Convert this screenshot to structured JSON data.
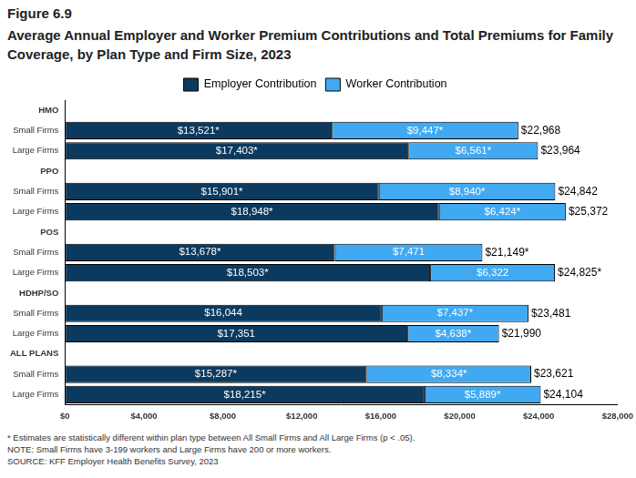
{
  "chart_data": {
    "type": "bar",
    "orientation": "horizontal",
    "stacked": true,
    "subtitle": "Figure 6.9",
    "title": "Average Annual Employer and Worker Premium Contributions and Total Premiums for Family Coverage, by Plan Type and Firm Size, 2023",
    "annotations": [
      "* Estimates are statistically different within plan type between All Small Firms and All Large Firms (p < .05).",
      "NOTE: Small Firms have 3-199 workers and Large Firms have 200 or more workers.",
      "SOURCE: KFF Employer Health Benefits Survey, 2023"
    ],
    "categories": [
      "HMO",
      "Small Firms",
      "Large Firms",
      "PPO",
      "Small Firms",
      "Large Firms",
      "POS",
      "Small Firms",
      "Large Firms",
      "HDHP/SO",
      "Small Firms",
      "Large Firms",
      "ALL PLANS",
      "Small Firms",
      "Large Firms"
    ],
    "series": [
      {
        "name": "Employer Contribution",
        "color": "#0c3a5e",
        "values": [
          null,
          13521,
          17403,
          null,
          15901,
          18948,
          null,
          13678,
          18503,
          null,
          16044,
          17351,
          null,
          15287,
          18215
        ],
        "value_labels": [
          null,
          "$13,521*",
          "$17,403*",
          null,
          "$15,901*",
          "$18,948*",
          null,
          "$13,678*",
          "$18,503*",
          null,
          "$16,044",
          "$17,351",
          null,
          "$15,287*",
          "$18,215*"
        ]
      },
      {
        "name": "Worker Contribution",
        "color": "#41a9f2",
        "values": [
          null,
          9447,
          6561,
          null,
          8940,
          6424,
          null,
          7471,
          6322,
          null,
          7437,
          4638,
          null,
          8334,
          5889
        ],
        "value_labels": [
          null,
          "$9,447*",
          "$6,561*",
          null,
          "$8,940*",
          "$6,424*",
          null,
          "$7,471",
          "$6,322",
          null,
          "$7,437*",
          "$4,638*",
          null,
          "$8,334*",
          "$5,889*"
        ]
      }
    ],
    "totals": [
      null,
      22968,
      23964,
      null,
      24842,
      25372,
      null,
      21149,
      24825,
      null,
      23481,
      21990,
      null,
      23621,
      24104
    ],
    "total_labels": [
      null,
      "$22,968",
      "$23,964",
      null,
      "$24,842",
      "$25,372",
      null,
      "$21,149*",
      "$24,825*",
      null,
      "$23,481",
      "$21,990",
      null,
      "$23,621",
      "$24,104"
    ],
    "xlim": [
      0,
      28000
    ],
    "xticks": [
      {
        "value": 0,
        "label": "$0"
      },
      {
        "value": 4000,
        "label": "$4,000"
      },
      {
        "value": 8000,
        "label": "$8,000"
      },
      {
        "value": 12000,
        "label": "$12,000"
      },
      {
        "value": 16000,
        "label": "$16,000"
      },
      {
        "value": 20000,
        "label": "$20,000"
      },
      {
        "value": 24000,
        "label": "$24,000"
      },
      {
        "value": 28000,
        "label": "$28,000"
      }
    ],
    "grid": false,
    "legend": "top",
    "data_labels": true
  }
}
